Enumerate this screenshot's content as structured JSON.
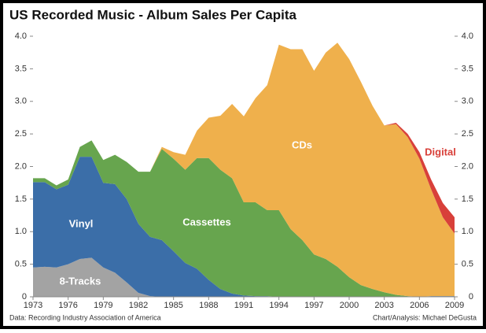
{
  "chart_data": {
    "type": "stacked-area",
    "title": "US Recorded Music - Album Sales Per Capita",
    "source": "Data: Recording Industry Association of America",
    "credit": "Chart/Analysis: Michael DeGusta",
    "x": [
      1973,
      1974,
      1975,
      1976,
      1977,
      1978,
      1979,
      1980,
      1981,
      1982,
      1983,
      1984,
      1985,
      1986,
      1987,
      1988,
      1989,
      1990,
      1991,
      1992,
      1993,
      1994,
      1995,
      1996,
      1997,
      1998,
      1999,
      2000,
      2001,
      2002,
      2003,
      2004,
      2005,
      2006,
      2007,
      2008,
      2009
    ],
    "xlim": [
      1973,
      2009
    ],
    "xticks": [
      1973,
      1976,
      1979,
      1982,
      1985,
      1988,
      1991,
      1994,
      1997,
      2000,
      2003,
      2006,
      2009
    ],
    "ylim": [
      0,
      4
    ],
    "yticks": [
      0,
      0.5,
      {
        "value": 1,
        "label": "1.0"
      },
      1.5,
      {
        "value": 2,
        "label": "2.0"
      },
      2.5,
      {
        "value": 3,
        "label": "3.0"
      },
      3.5,
      {
        "value": 4,
        "label": "4.0"
      }
    ],
    "y2lim": [
      0,
      4
    ],
    "y2ticks": [
      0,
      0.5,
      {
        "value": 1,
        "label": "1.0"
      },
      1.5,
      {
        "value": 2,
        "label": "2.0"
      },
      2.5,
      {
        "value": 3,
        "label": "3.0"
      },
      3.5,
      {
        "value": 4,
        "label": "4.0"
      }
    ],
    "grid": false,
    "series": [
      {
        "name": "8-Tracks",
        "color": "#a3a3a3",
        "values": [
          0.45,
          0.46,
          0.45,
          0.5,
          0.58,
          0.6,
          0.45,
          0.37,
          0.22,
          0.06,
          0.01,
          0,
          0,
          0,
          0,
          0,
          0,
          0,
          0,
          0,
          0,
          0,
          0,
          0,
          0,
          0,
          0,
          0,
          0,
          0,
          0,
          0,
          0,
          0,
          0,
          0,
          0
        ]
      },
      {
        "name": "Vinyl",
        "color": "#3b6ea8",
        "values": [
          1.31,
          1.3,
          1.2,
          1.22,
          1.57,
          1.55,
          1.3,
          1.36,
          1.28,
          1.06,
          0.91,
          0.87,
          0.7,
          0.52,
          0.43,
          0.26,
          0.12,
          0.05,
          0.02,
          0.01,
          0.01,
          0,
          0,
          0,
          0,
          0,
          0,
          0,
          0,
          0,
          0,
          0,
          0,
          0,
          0.01,
          0.01,
          0.01
        ]
      },
      {
        "name": "Cassettes",
        "color": "#67a54e",
        "values": [
          0.06,
          0.06,
          0.06,
          0.08,
          0.15,
          0.25,
          0.35,
          0.45,
          0.57,
          0.8,
          1.0,
          1.4,
          1.42,
          1.43,
          1.7,
          1.87,
          1.83,
          1.77,
          1.43,
          1.44,
          1.32,
          1.33,
          1.04,
          0.87,
          0.65,
          0.58,
          0.46,
          0.3,
          0.18,
          0.12,
          0.07,
          0.03,
          0.01,
          0,
          0,
          0,
          0
        ]
      },
      {
        "name": "CDs",
        "color": "#efb04c",
        "values": [
          0,
          0,
          0,
          0,
          0,
          0,
          0,
          0,
          0,
          0,
          0,
          0.03,
          0.1,
          0.23,
          0.42,
          0.62,
          0.83,
          1.14,
          1.32,
          1.6,
          1.92,
          2.54,
          2.76,
          2.93,
          2.82,
          3.17,
          3.44,
          3.35,
          3.12,
          2.81,
          2.56,
          2.62,
          2.44,
          2.12,
          1.64,
          1.21,
          0.96
        ]
      },
      {
        "name": "Digital",
        "color": "#d8403a",
        "values": [
          0,
          0,
          0,
          0,
          0,
          0,
          0,
          0,
          0,
          0,
          0,
          0,
          0,
          0,
          0,
          0,
          0,
          0,
          0,
          0,
          0,
          0,
          0,
          0,
          0,
          0,
          0,
          0,
          0,
          0,
          0,
          0.02,
          0.05,
          0.1,
          0.15,
          0.22,
          0.25
        ]
      }
    ]
  }
}
